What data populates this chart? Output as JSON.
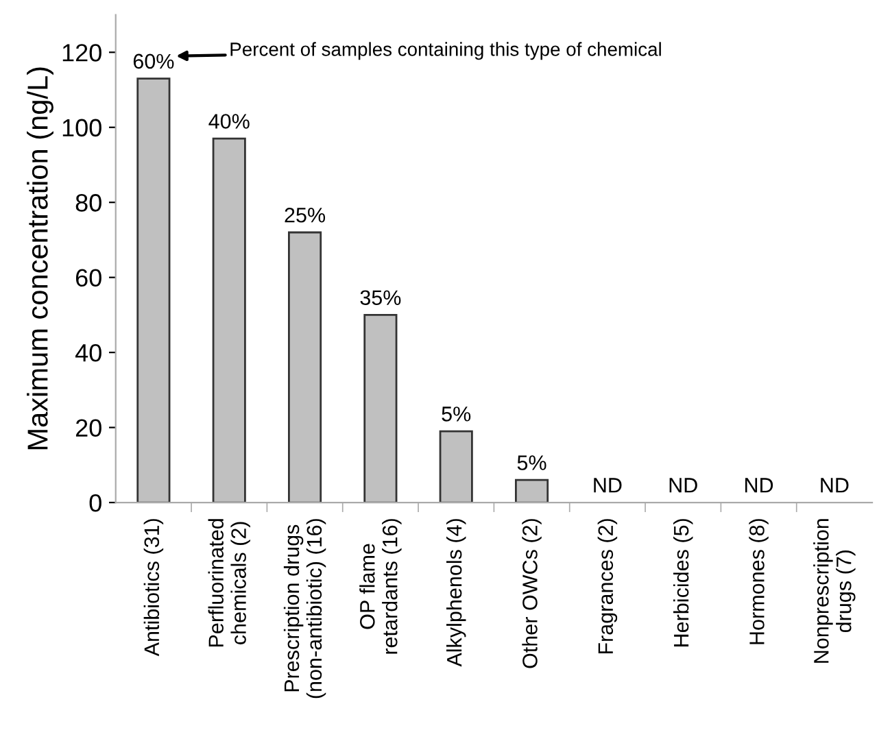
{
  "chart_data": {
    "type": "bar",
    "ylabel": "Maximum concentration (ng/L)",
    "categories": [
      "Antibiotics (31)",
      "Perfluorinated\nchemicals (2)",
      "Prescription drugs\n(non-antibiotic) (16)",
      "OP flame\nretardants (16)",
      "Alkylphenols (4)",
      "Other OWCs (2)",
      "Fragrances (2)",
      "Herbicides (5)",
      "Hormones (8)",
      "Nonprescription\ndrugs (7)"
    ],
    "values": [
      113,
      97,
      72,
      50,
      19,
      6,
      0,
      0,
      0,
      0
    ],
    "color": "#c0c0c0",
    "ylim": [
      0,
      130
    ],
    "yticks": [
      0,
      20,
      40,
      60,
      80,
      100,
      120
    ],
    "grid": false,
    "annotations": [
      "Percent of samples containing this type of chemical",
      {
        "text": "60%",
        "x": "Antibiotics (31)",
        "y": 113
      },
      {
        "text": "40%",
        "x": "Perfluorinated\nchemicals (2)",
        "y": 97
      },
      {
        "text": "25%",
        "x": "Prescription drugs\n(non-antibiotic) (16)",
        "y": 72
      },
      {
        "text": "35%",
        "x": "OP flame\nretardants (16)",
        "y": 50
      },
      {
        "text": "5%",
        "x": "Alkylphenols (4)",
        "y": 19
      },
      {
        "text": "5%",
        "x": "Other OWCs (2)",
        "y": 6
      },
      {
        "text": "ND",
        "x": "Fragrances (2)",
        "y": 0
      },
      {
        "text": "ND",
        "x": "Herbicides (5)",
        "y": 0
      },
      {
        "text": "ND",
        "x": "Hormones (8)",
        "y": 0
      },
      {
        "text": "ND",
        "x": "Nonprescription\ndrugs (7)",
        "y": 0
      }
    ]
  }
}
